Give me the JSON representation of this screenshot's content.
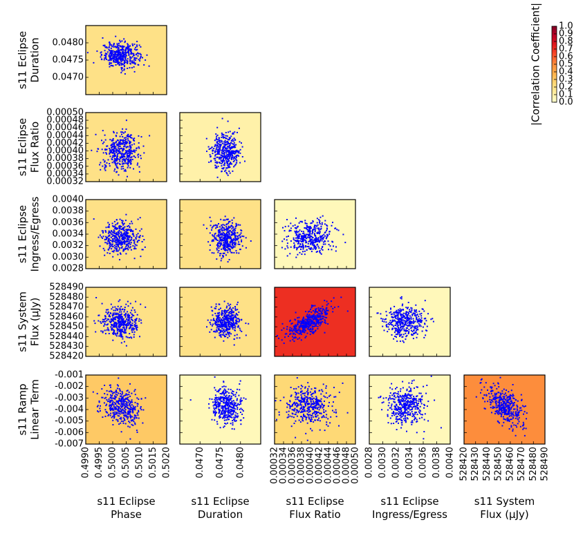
{
  "chart_data": {
    "type": "scatter",
    "title": "",
    "parameters": [
      {
        "id": "phase",
        "label": [
          "s11 Eclipse",
          "Phase"
        ],
        "range": [
          0.499,
          0.502
        ],
        "center": 0.5003,
        "sd": 0.00035,
        "ticks": [
          "0.4990",
          "0.4995",
          "0.5000",
          "0.5005",
          "0.5010",
          "0.5015",
          "0.5020"
        ]
      },
      {
        "id": "duration",
        "label": [
          "s11 Eclipse",
          "Duration"
        ],
        "range": [
          0.0465,
          0.0485
        ],
        "center": 0.04765,
        "sd": 0.00018,
        "ticks": [
          "0.0470",
          "0.0475",
          "0.0480"
        ]
      },
      {
        "id": "flux_ratio",
        "label": [
          "s11 Eclipse",
          "Flux Ratio"
        ],
        "range": [
          0.00032,
          0.0005
        ],
        "center": 0.000398,
        "sd": 2.5e-05,
        "ticks": [
          "0.00032",
          "0.00034",
          "0.00036",
          "0.00038",
          "0.00040",
          "0.00042",
          "0.00044",
          "0.00046",
          "0.00048",
          "0.00050"
        ]
      },
      {
        "id": "ingress",
        "label": [
          "s11 Eclipse",
          "Ingress/Egress"
        ],
        "range": [
          0.0028,
          0.004
        ],
        "center": 0.00334,
        "sd": 0.00015,
        "ticks": [
          "0.0028",
          "0.0030",
          "0.0032",
          "0.0034",
          "0.0036",
          "0.0038",
          "0.0040"
        ]
      },
      {
        "id": "system_flux",
        "label": [
          "s11 System",
          "Flux (μJy)"
        ],
        "range": [
          528420,
          528490
        ],
        "center": 528455,
        "sd": 8,
        "ticks": [
          "528420",
          "528430",
          "528440",
          "528450",
          "528460",
          "528470",
          "528480",
          "528490"
        ]
      },
      {
        "id": "ramp",
        "label": [
          "s11 Ramp",
          "Linear Term"
        ],
        "range": [
          -0.007,
          -0.001
        ],
        "center": -0.0037,
        "sd": 0.00085,
        "ticks": [
          "-0.001",
          "-0.002",
          "-0.003",
          "-0.004",
          "-0.005",
          "-0.006",
          "-0.007"
        ]
      }
    ],
    "panels": [
      {
        "x": "phase",
        "y": "duration",
        "abs_corr": 0.2
      },
      {
        "x": "phase",
        "y": "flux_ratio",
        "abs_corr": 0.2
      },
      {
        "x": "duration",
        "y": "flux_ratio",
        "abs_corr": 0.1
      },
      {
        "x": "phase",
        "y": "ingress",
        "abs_corr": 0.2
      },
      {
        "x": "duration",
        "y": "ingress",
        "abs_corr": 0.2
      },
      {
        "x": "flux_ratio",
        "y": "ingress",
        "abs_corr": 0.05
      },
      {
        "x": "phase",
        "y": "system_flux",
        "abs_corr": 0.2
      },
      {
        "x": "duration",
        "y": "system_flux",
        "abs_corr": 0.2
      },
      {
        "x": "flux_ratio",
        "y": "system_flux",
        "abs_corr": 0.7
      },
      {
        "x": "ingress",
        "y": "system_flux",
        "abs_corr": 0.05
      },
      {
        "x": "phase",
        "y": "ramp",
        "abs_corr": 0.3
      },
      {
        "x": "duration",
        "y": "ramp",
        "abs_corr": 0.05
      },
      {
        "x": "flux_ratio",
        "y": "ramp",
        "abs_corr": 0.25
      },
      {
        "x": "ingress",
        "y": "ramp",
        "abs_corr": 0.05
      },
      {
        "x": "system_flux",
        "y": "ramp",
        "abs_corr": 0.5
      }
    ],
    "points_per_panel": 400,
    "point_color": "#0000ff",
    "colorbar": {
      "label": "|Correlation Coefficient|",
      "range": [
        0.0,
        1.0
      ],
      "ticks": [
        "0.0",
        "0.1",
        "0.2",
        "0.3",
        "0.4",
        "0.5",
        "0.6",
        "0.7",
        "0.8",
        "0.9",
        "1.0"
      ],
      "colors": [
        "#ffffcc",
        "#ffeda0",
        "#fed976",
        "#feb24c",
        "#fd8d3c",
        "#fc4e2a",
        "#e31a1c",
        "#bd0026",
        "#800026"
      ]
    }
  }
}
